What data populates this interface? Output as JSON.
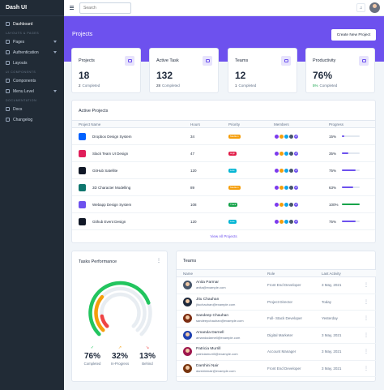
{
  "sidebar": {
    "brand": "Dash UI",
    "dashboard": "Dashboard",
    "section_layouts": "LAYOUTS & PAGES",
    "pages": "Pages",
    "authentication": "Authentication",
    "layouts": "Layouts",
    "section_components": "UI COMPONENTS",
    "components": "Components",
    "menu_level": "Menu Level",
    "section_documentation": "DOCUMENTATION",
    "docs": "Docs",
    "changelog": "Changelog"
  },
  "topbar": {
    "search_placeholder": "Search"
  },
  "hero": {
    "title": "Projects",
    "button": "Create New Project",
    "accent": "#6d51ee"
  },
  "stats": [
    {
      "label": "Projects",
      "value": "18",
      "sub_count": "2",
      "sub_text": "Completed",
      "icon": "briefcase-icon"
    },
    {
      "label": "Active Task",
      "value": "132",
      "sub_count": "28",
      "sub_text": "Completed",
      "icon": "list-icon"
    },
    {
      "label": "Teams",
      "value": "12",
      "sub_count": "1",
      "sub_text": "Completed",
      "icon": "people-icon"
    },
    {
      "label": "Productivity",
      "value": "76%",
      "sub_count": "5%",
      "sub_text": "Completed",
      "icon": "target-icon"
    }
  ],
  "active_projects": {
    "title": "Active Projects",
    "headers": [
      "Project Name",
      "Hours",
      "Priority",
      "Members",
      "Progress"
    ],
    "rows": [
      {
        "name": "Dropbox Design System",
        "hours": "34",
        "priority": "Medium",
        "priority_color": "#f59e0b",
        "progress": "15%",
        "progress_value": 15,
        "icon_color": "#0061fe",
        "icon": "dropbox-icon",
        "bar_color": "#6d51ee"
      },
      {
        "name": "Slack Team UI Design",
        "hours": "47",
        "priority": "High",
        "priority_color": "#e11d48",
        "progress": "35%",
        "progress_value": 35,
        "icon_color": "#e01e5a",
        "icon": "slack-icon",
        "bar_color": "#6d51ee"
      },
      {
        "name": "GitHub Satellite",
        "hours": "120",
        "priority": "Low",
        "priority_color": "#06b6d4",
        "progress": "75%",
        "progress_value": 75,
        "icon_color": "#111827",
        "icon": "github-icon",
        "bar_color": "#6d51ee"
      },
      {
        "name": "3D Character Modelling",
        "hours": "89",
        "priority": "Medium",
        "priority_color": "#f59e0b",
        "progress": "63%",
        "progress_value": 63,
        "icon_color": "#0f766e",
        "icon": "3d-icon",
        "bar_color": "#6d51ee"
      },
      {
        "name": "Webapp Design System",
        "hours": "108",
        "priority": "Track",
        "priority_color": "#16a34a",
        "progress": "100%",
        "progress_value": 100,
        "icon_color": "#6d51ee",
        "icon": "webapp-icon",
        "bar_color": "#16a34a"
      },
      {
        "name": "Github Event Design",
        "hours": "120",
        "priority": "Low",
        "priority_color": "#06b6d4",
        "progress": "75%",
        "progress_value": 75,
        "icon_color": "#111827",
        "icon": "github-icon",
        "bar_color": "#6d51ee"
      }
    ],
    "members_more": "+5",
    "view_all": "View All Projects"
  },
  "tasks_performance": {
    "title": "Tasks Performance",
    "completed_value": "76%",
    "completed_label": "Completed",
    "inprogress_value": "32%",
    "inprogress_label": "In-Progress",
    "behind_value": "13%",
    "behind_label": "Behind",
    "completed_fraction": 0.76,
    "inprogress_fraction": 0.32,
    "behind_fraction": 0.13,
    "colors": {
      "completed": "#22c55e",
      "inprogress": "#f59e0b",
      "behind": "#ef4444"
    }
  },
  "teams": {
    "title": "Teams",
    "headers": [
      "Name",
      "Role",
      "Last Activity"
    ],
    "rows": [
      {
        "name": "Anita Parmar",
        "email": "anita@example.com",
        "role": "Front End Developer",
        "activity": "3 May, 2021",
        "avatar_color": "#475569"
      },
      {
        "name": "Jitu Chauhan",
        "email": "jituchauhan@example.com",
        "role": "Project Director",
        "activity": "Today",
        "avatar_color": "#1e293b"
      },
      {
        "name": "Sandeep Chauhan",
        "email": "sandeepchauhan@example.com",
        "role": "Full- Stack Developer",
        "activity": "Yesterday",
        "avatar_color": "#7c2d12"
      },
      {
        "name": "Amanda Darnell",
        "email": "amandadarnell@example.com",
        "role": "Digital Marketer",
        "activity": "3 May, 2021",
        "avatar_color": "#1e40af"
      },
      {
        "name": "Patricia Murrill",
        "email": "patriciamurrill@example.com",
        "role": "Account Manager",
        "activity": "3 May, 2021",
        "avatar_color": "#9d174d"
      },
      {
        "name": "Darshini Nair",
        "email": "darshininair@example.com",
        "role": "Front End Developer",
        "activity": "3 May, 2021",
        "avatar_color": "#78350f"
      }
    ]
  }
}
